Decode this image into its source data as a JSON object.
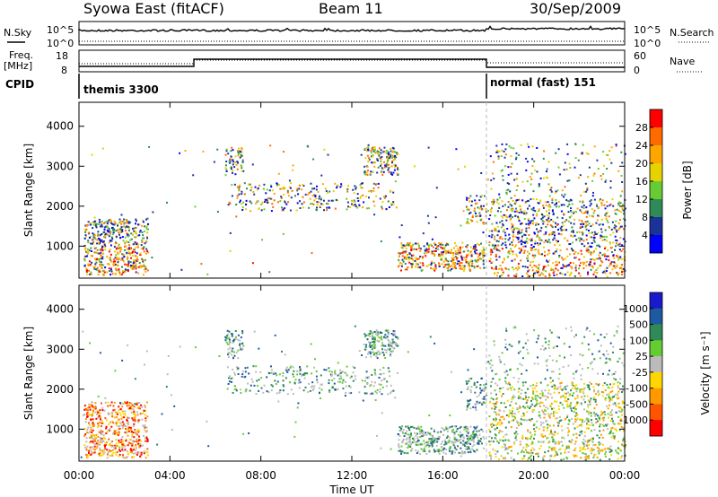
{
  "header": {
    "title": "Syowa East (fitACF)",
    "beam": "Beam 11",
    "date": "30/Sep/2009"
  },
  "strip_nsky": {
    "left_label": "N.Sky",
    "right_label": "N.Search",
    "left_ticks": [
      "10^5",
      "10^0"
    ],
    "right_ticks": [
      "10^5",
      "10^0"
    ]
  },
  "strip_freq": {
    "left_label_1": "Freq.",
    "left_label_2": "[MHz]",
    "right_label": "Nave",
    "left_ticks": [
      "18",
      "8"
    ],
    "right_ticks": [
      "60",
      "0"
    ]
  },
  "cpid": {
    "label": "CPID",
    "modes": [
      {
        "text": "themis 3300",
        "start_hour": 0
      },
      {
        "text": "normal (fast) 151",
        "start_hour": 18
      }
    ]
  },
  "time_axis": {
    "label": "Time UT",
    "ticks": [
      "00:00",
      "04:00",
      "08:00",
      "12:00",
      "16:00",
      "20:00",
      "00:00"
    ],
    "tick_hours": [
      0,
      4,
      8,
      12,
      16,
      20,
      24
    ]
  },
  "chart_data": [
    {
      "type": "heatmap",
      "ylabel": "Slant Range [km]",
      "ylim": [
        200,
        4600
      ],
      "xlim": [
        0,
        24
      ],
      "yticks": [
        "1000",
        "2000",
        "3000",
        "4000"
      ],
      "ytick_values": [
        1000,
        2000,
        3000,
        4000
      ],
      "colorbar": {
        "label": "Power [dB]",
        "ticks": [
          "28",
          "24",
          "20",
          "16",
          "12",
          "8",
          "4"
        ],
        "colors": [
          "#ff0000",
          "#ff6a00",
          "#ffa500",
          "#e6d200",
          "#66cc33",
          "#2e8b57",
          "#1a3399",
          "#0000ff"
        ]
      }
    },
    {
      "type": "heatmap",
      "ylabel": "Slant Range [km]",
      "ylim": [
        200,
        4600
      ],
      "xlim": [
        0,
        24
      ],
      "yticks": [
        "1000",
        "2000",
        "3000",
        "4000"
      ],
      "ytick_values": [
        1000,
        2000,
        3000,
        4000
      ],
      "colorbar": {
        "label": "Velocity [m s⁻¹]",
        "ticks": [
          "1000",
          "500",
          "100",
          "25",
          "-25",
          "-100",
          "-500",
          "-1000"
        ],
        "colors": [
          "#1a1acc",
          "#1e5aa0",
          "#2e8b57",
          "#66cc33",
          "#bbbbbb",
          "#ffd700",
          "#ff9900",
          "#ff5500",
          "#ff0000"
        ]
      }
    }
  ]
}
